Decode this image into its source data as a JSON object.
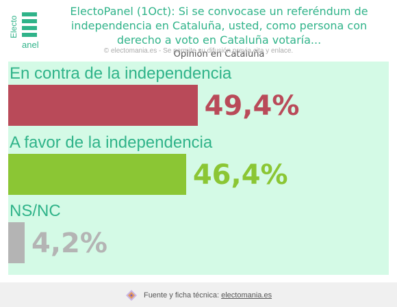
{
  "logo": {
    "text_top": "Electo",
    "text_bottom": "anel"
  },
  "header": {
    "title": "ElectoPanel (1Oct): Si se convocase un referéndum de independencia en Cataluña, usted, como persona con derecho a voto en Cataluña votaría...",
    "subtitle": "Opinión en Cataluña"
  },
  "credit": "© electomania.es - Se permite su difusión previa cita y enlace.",
  "chart_data": {
    "type": "bar",
    "orientation": "horizontal",
    "categories": [
      "En contra de la independencia",
      "A favor de la independencia",
      "NS/NC"
    ],
    "values": [
      49.4,
      46.4,
      4.2
    ],
    "value_labels": [
      "49,4%",
      "46,4%",
      "4,2%"
    ],
    "colors": [
      "#b94a59",
      "#8bc634",
      "#b4b4b4"
    ],
    "xlim": [
      0,
      100
    ],
    "grid": false,
    "legend": "none"
  },
  "footer": {
    "text": "Fuente y ficha técnica:",
    "link": "electomania.es"
  }
}
